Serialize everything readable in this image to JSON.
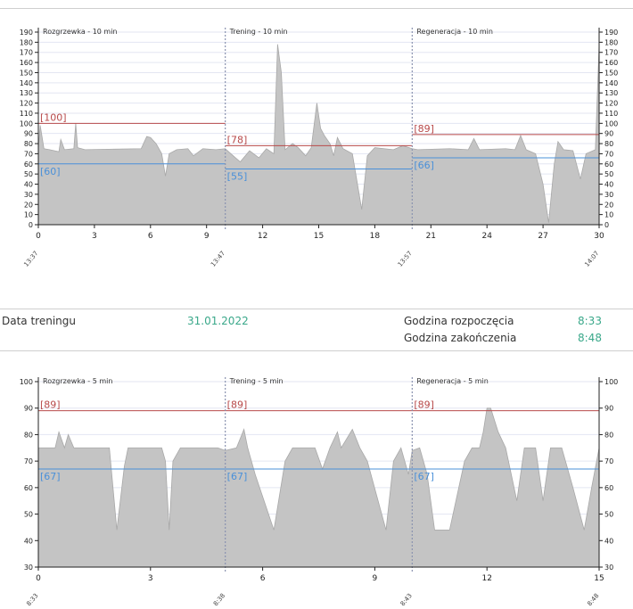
{
  "session1": {
    "chart_data": {
      "type": "area",
      "xlim": [
        0,
        30
      ],
      "ylim": [
        0,
        190
      ],
      "y_ticks": [
        0,
        10,
        20,
        30,
        40,
        50,
        60,
        70,
        80,
        90,
        100,
        110,
        120,
        130,
        140,
        150,
        160,
        170,
        180,
        190
      ],
      "x_ticks": [
        0,
        3,
        6,
        9,
        12,
        15,
        18,
        21,
        24,
        27,
        30
      ],
      "time_labels": [
        {
          "x": 0,
          "label": "13:37"
        },
        {
          "x": 10,
          "label": "13:47"
        },
        {
          "x": 20,
          "label": "13:57"
        },
        {
          "x": 30,
          "label": "14:07"
        }
      ],
      "phases": [
        {
          "start": 0,
          "end": 10,
          "label": "Rozgrzewka - 10 min",
          "upper": 100,
          "upper_label": "[100]",
          "lower": 60,
          "lower_label": "[60]"
        },
        {
          "start": 10,
          "end": 20,
          "label": "Trening - 10 min",
          "upper": 78,
          "upper_label": "[78]",
          "lower": 55,
          "lower_label": "[55]"
        },
        {
          "start": 20,
          "end": 30,
          "label": "Regeneracja - 10 min",
          "upper": 89,
          "upper_label": "[89]",
          "lower": 66,
          "lower_label": "[66]"
        }
      ],
      "series_points": [
        [
          0,
          75
        ],
        [
          0.1,
          98
        ],
        [
          0.3,
          75
        ],
        [
          0.6,
          74
        ],
        [
          1.1,
          72
        ],
        [
          1.2,
          84
        ],
        [
          1.4,
          74
        ],
        [
          1.9,
          75
        ],
        [
          2.0,
          100
        ],
        [
          2.1,
          76
        ],
        [
          2.5,
          74
        ],
        [
          5.5,
          75
        ],
        [
          5.8,
          87
        ],
        [
          6.0,
          86
        ],
        [
          6.3,
          80
        ],
        [
          6.6,
          70
        ],
        [
          6.8,
          48
        ],
        [
          7.0,
          70
        ],
        [
          7.4,
          74
        ],
        [
          8.0,
          75
        ],
        [
          8.3,
          68
        ],
        [
          8.8,
          75
        ],
        [
          9.5,
          74
        ],
        [
          10,
          75
        ],
        [
          10.3,
          70
        ],
        [
          10.8,
          62
        ],
        [
          11.3,
          73
        ],
        [
          11.8,
          66
        ],
        [
          12.2,
          75
        ],
        [
          12.6,
          70
        ],
        [
          12.8,
          178
        ],
        [
          13.0,
          150
        ],
        [
          13.2,
          74
        ],
        [
          13.6,
          80
        ],
        [
          13.9,
          76
        ],
        [
          14.3,
          68
        ],
        [
          14.6,
          76
        ],
        [
          14.9,
          120
        ],
        [
          15.1,
          95
        ],
        [
          15.3,
          88
        ],
        [
          15.6,
          80
        ],
        [
          15.8,
          68
        ],
        [
          16.0,
          86
        ],
        [
          16.3,
          75
        ],
        [
          16.8,
          70
        ],
        [
          17.3,
          15
        ],
        [
          17.6,
          68
        ],
        [
          18.0,
          76
        ],
        [
          18.5,
          75
        ],
        [
          19.0,
          74
        ],
        [
          19.5,
          78
        ],
        [
          20,
          75
        ],
        [
          20.3,
          74
        ],
        [
          22,
          75
        ],
        [
          23.0,
          74
        ],
        [
          23.3,
          85
        ],
        [
          23.6,
          74
        ],
        [
          25.0,
          75
        ],
        [
          25.5,
          74
        ],
        [
          25.8,
          88
        ],
        [
          26.1,
          74
        ],
        [
          26.6,
          70
        ],
        [
          27.0,
          40
        ],
        [
          27.3,
          2
        ],
        [
          27.6,
          60
        ],
        [
          27.8,
          82
        ],
        [
          28.1,
          74
        ],
        [
          28.6,
          73
        ],
        [
          29.0,
          45
        ],
        [
          29.3,
          70
        ],
        [
          29.8,
          74
        ],
        [
          30,
          178
        ]
      ]
    }
  },
  "info": {
    "date_label": "Data treningu",
    "date_value": "31.01.2022",
    "start_label": "Godzina rozpoczęcia",
    "start_value": "8:33",
    "end_label": "Godzina zakończenia",
    "end_value": "8:48"
  },
  "session2": {
    "chart_data": {
      "type": "area",
      "xlim": [
        0,
        15
      ],
      "ylim": [
        30,
        100
      ],
      "y_ticks": [
        30,
        40,
        50,
        60,
        70,
        80,
        90,
        100
      ],
      "x_ticks": [
        0,
        3,
        6,
        9,
        12,
        15
      ],
      "time_labels": [
        {
          "x": 0,
          "label": "8:33"
        },
        {
          "x": 5,
          "label": "8:38"
        },
        {
          "x": 10,
          "label": "8:43"
        },
        {
          "x": 15,
          "label": "8:48"
        }
      ],
      "phases": [
        {
          "start": 0,
          "end": 5,
          "label": "Rozgrzewka - 5 min",
          "upper": 89,
          "upper_label": "[89]",
          "lower": 67,
          "lower_label": "[67]"
        },
        {
          "start": 5,
          "end": 10,
          "label": "Trening - 5 min",
          "upper": 89,
          "upper_label": "[89]",
          "lower": 67,
          "lower_label": "[67]"
        },
        {
          "start": 10,
          "end": 15,
          "label": "Regeneracja - 5 min",
          "upper": 89,
          "upper_label": "[89]",
          "lower": 67,
          "lower_label": "[67]"
        }
      ],
      "series_points": [
        [
          0,
          75
        ],
        [
          0.45,
          75
        ],
        [
          0.55,
          81
        ],
        [
          0.7,
          75
        ],
        [
          0.8,
          80
        ],
        [
          0.95,
          75
        ],
        [
          1.9,
          75
        ],
        [
          2.1,
          44
        ],
        [
          2.3,
          68
        ],
        [
          2.4,
          75
        ],
        [
          3.2,
          75
        ],
        [
          3.3,
          75
        ],
        [
          3.4,
          70
        ],
        [
          3.5,
          44
        ],
        [
          3.6,
          70
        ],
        [
          3.8,
          75
        ],
        [
          4.2,
          75
        ],
        [
          4.8,
          75
        ],
        [
          5.0,
          74
        ],
        [
          5.3,
          75
        ],
        [
          5.5,
          82
        ],
        [
          5.6,
          75
        ],
        [
          5.8,
          65
        ],
        [
          6.3,
          44
        ],
        [
          6.6,
          70
        ],
        [
          6.8,
          75
        ],
        [
          7.4,
          75
        ],
        [
          7.6,
          67
        ],
        [
          7.8,
          75
        ],
        [
          8.0,
          81
        ],
        [
          8.1,
          75
        ],
        [
          8.4,
          82
        ],
        [
          8.6,
          75
        ],
        [
          8.8,
          70
        ],
        [
          9.3,
          44
        ],
        [
          9.5,
          70
        ],
        [
          9.7,
          75
        ],
        [
          9.9,
          65
        ],
        [
          10.0,
          74
        ],
        [
          10.2,
          75
        ],
        [
          10.4,
          65
        ],
        [
          10.6,
          44
        ],
        [
          11.0,
          44
        ],
        [
          11.4,
          70
        ],
        [
          11.6,
          75
        ],
        [
          11.8,
          75
        ],
        [
          11.9,
          81
        ],
        [
          12.0,
          90
        ],
        [
          12.1,
          90
        ],
        [
          12.3,
          81
        ],
        [
          12.5,
          75
        ],
        [
          12.8,
          55
        ],
        [
          13.0,
          75
        ],
        [
          13.3,
          75
        ],
        [
          13.5,
          55
        ],
        [
          13.7,
          75
        ],
        [
          14.0,
          75
        ],
        [
          14.3,
          60
        ],
        [
          14.6,
          44
        ],
        [
          14.8,
          60
        ],
        [
          15,
          75
        ]
      ]
    }
  }
}
